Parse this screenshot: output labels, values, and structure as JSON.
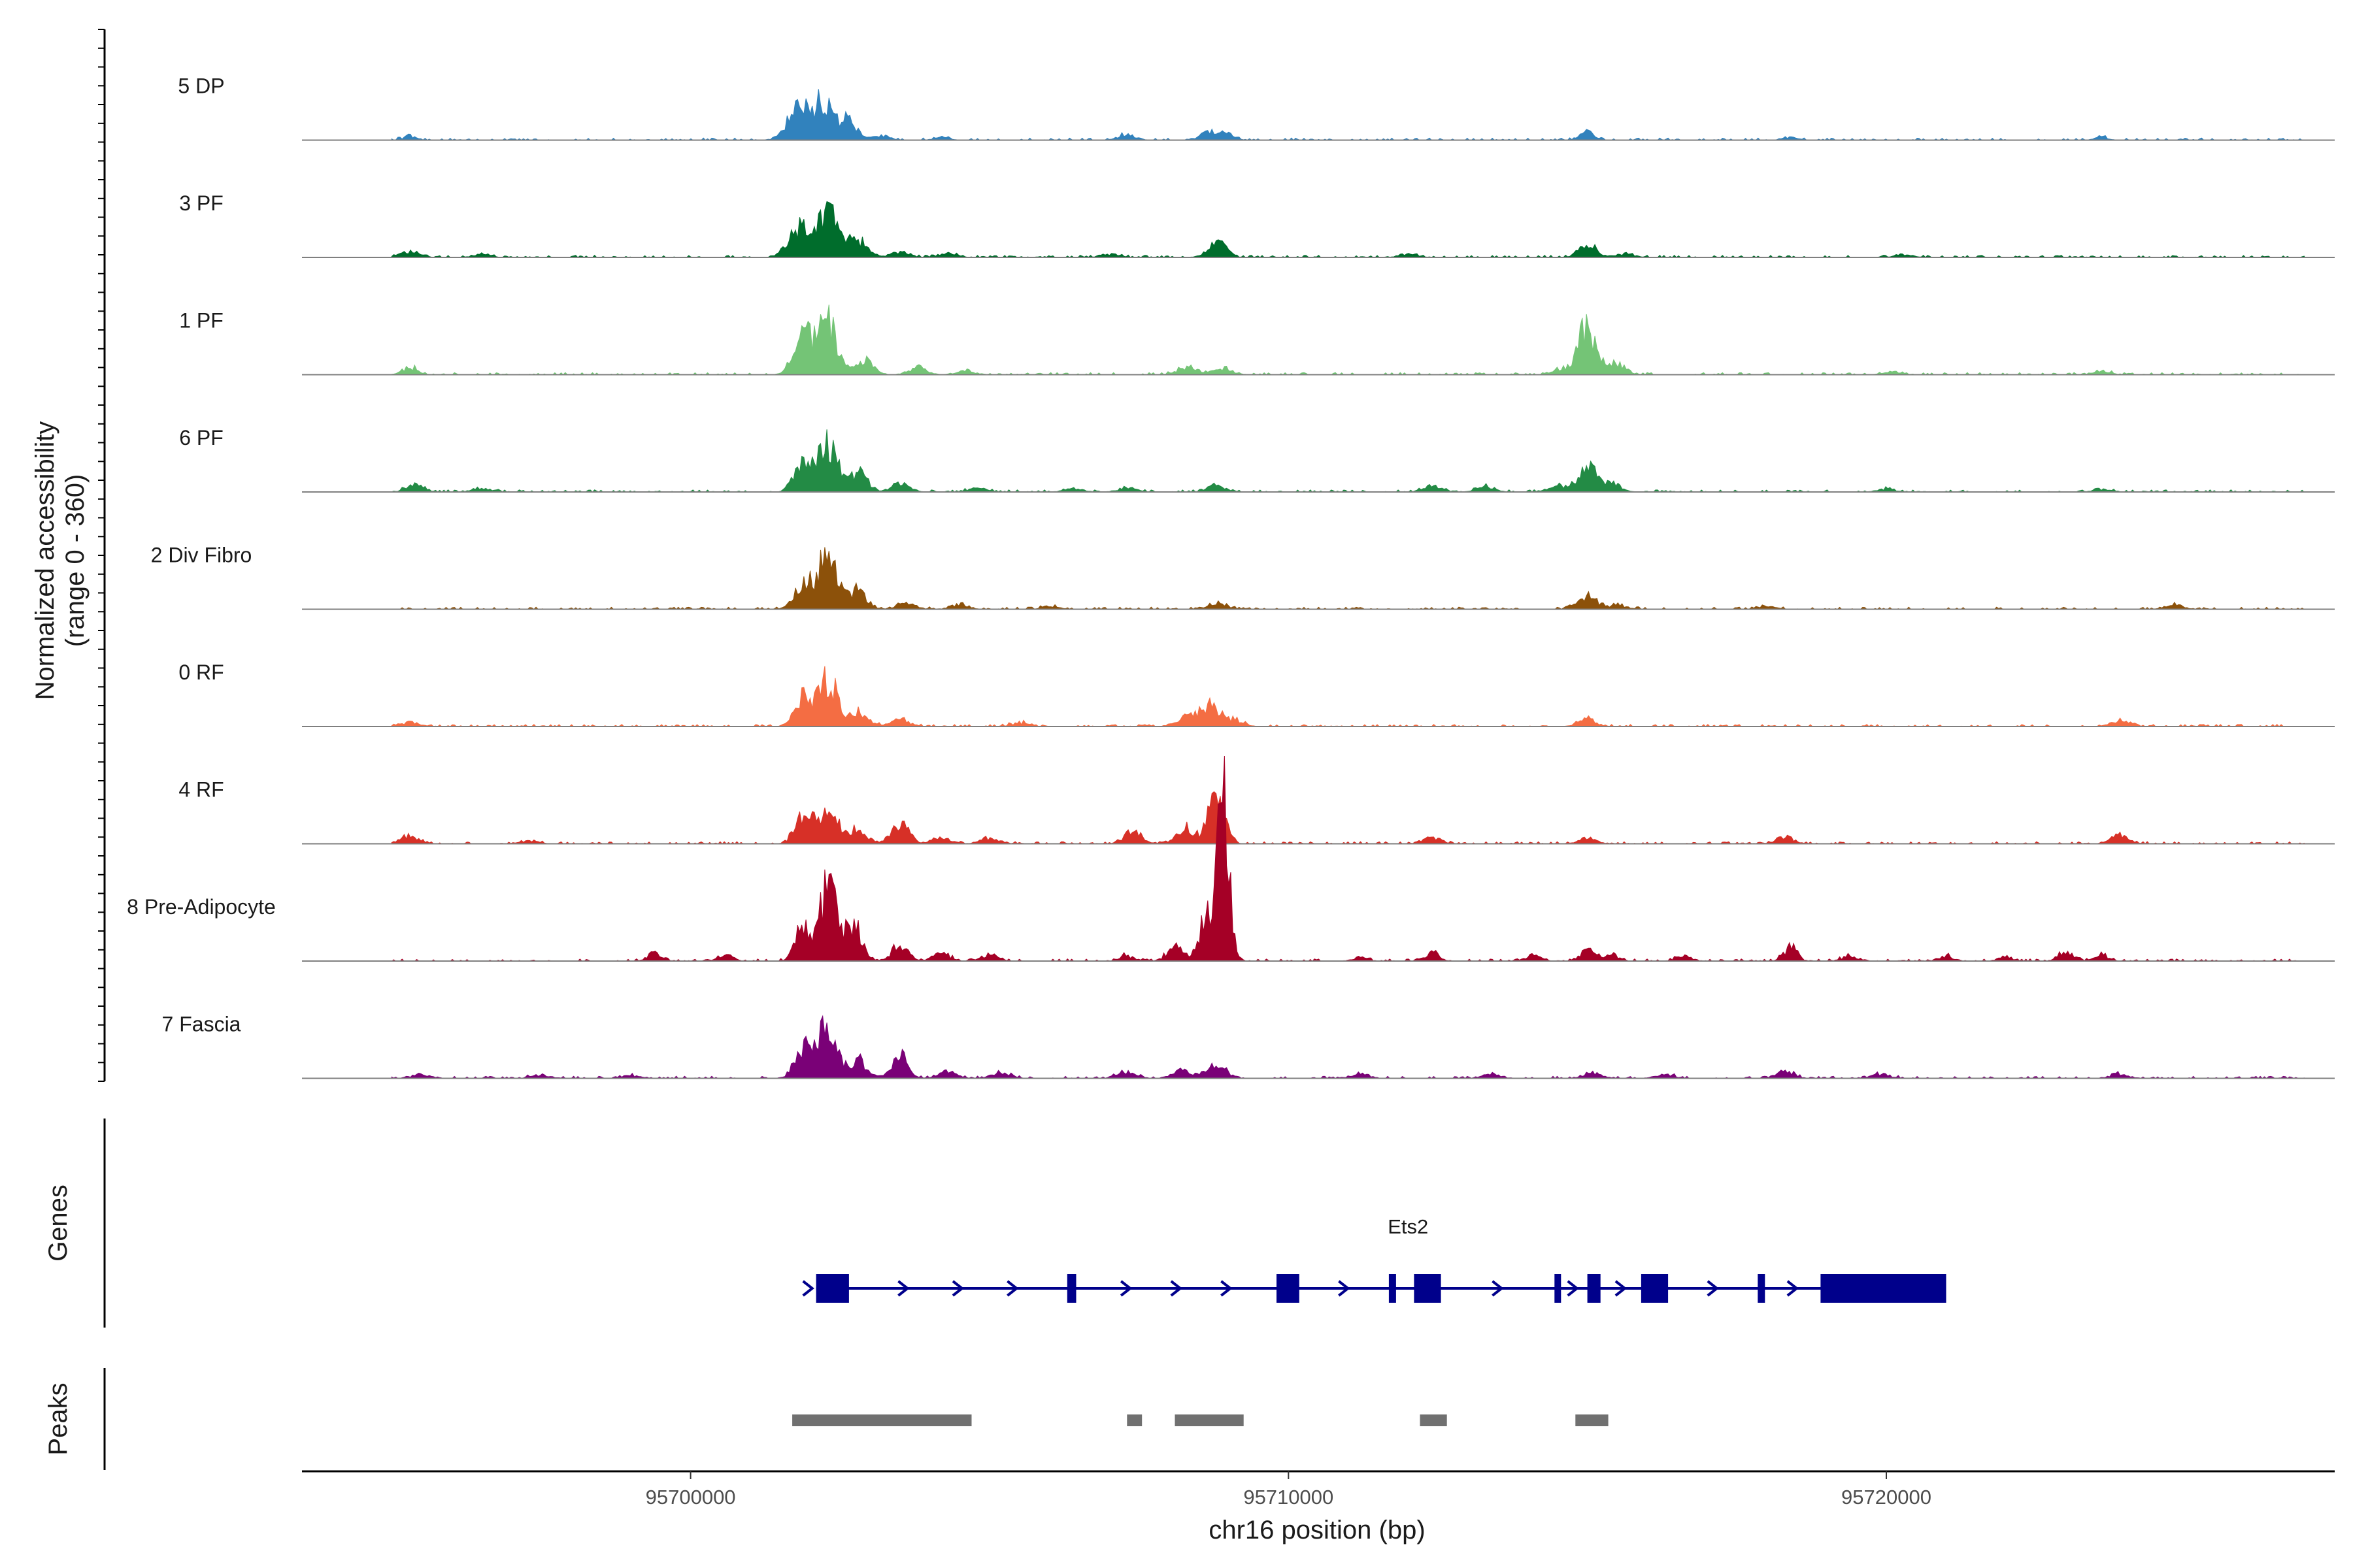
{
  "chart_data": {
    "type": "area",
    "title": "",
    "chromosome": "chr16",
    "xlabel": "chr16 position (bp)",
    "xlim": [
      95693500,
      95727500
    ],
    "x_ticks": [
      95700000,
      95710000,
      95720000
    ],
    "x_tick_labels": [
      "95700000",
      "95710000",
      "95720000"
    ],
    "coverage_ylabel_line1": "Normalized accessibility",
    "coverage_ylabel_line2": "(range 0 - 360)",
    "ylim": [
      0,
      360
    ],
    "genes_track_label": "Genes",
    "peaks_track_label": "Peaks",
    "series": [
      {
        "name": "5 DP",
        "color": "#3182bd",
        "peaks": [
          [
            95695300,
            6,
            100
          ],
          [
            95701800,
            45,
            180
          ],
          [
            95702200,
            52,
            160
          ],
          [
            95702600,
            30,
            150
          ],
          [
            95703200,
            8,
            120
          ],
          [
            95704200,
            5,
            120
          ],
          [
            95707300,
            8,
            150
          ],
          [
            95708700,
            13,
            160
          ],
          [
            95709000,
            8,
            120
          ],
          [
            95715000,
            12,
            110
          ],
          [
            95718400,
            4,
            120
          ],
          [
            95723600,
            5,
            100
          ]
        ]
      },
      {
        "name": "3 PF",
        "color": "#006d2c",
        "peaks": [
          [
            95695300,
            8,
            150
          ],
          [
            95696500,
            4,
            150
          ],
          [
            95701800,
            45,
            170
          ],
          [
            95702300,
            65,
            180
          ],
          [
            95702800,
            25,
            150
          ],
          [
            95703500,
            8,
            150
          ],
          [
            95704300,
            6,
            150
          ],
          [
            95707000,
            5,
            150
          ],
          [
            95708800,
            22,
            150
          ],
          [
            95712000,
            5,
            150
          ],
          [
            95715000,
            22,
            130
          ],
          [
            95715600,
            5,
            150
          ],
          [
            95720300,
            4,
            150
          ]
        ]
      },
      {
        "name": "1 PF",
        "color": "#74c476",
        "peaks": [
          [
            95695300,
            10,
            130
          ],
          [
            95701900,
            55,
            170
          ],
          [
            95702300,
            75,
            150
          ],
          [
            95702900,
            20,
            150
          ],
          [
            95703800,
            10,
            150
          ],
          [
            95704600,
            6,
            150
          ],
          [
            95708300,
            12,
            150
          ],
          [
            95708900,
            10,
            150
          ],
          [
            95714600,
            8,
            150
          ],
          [
            95715000,
            70,
            150
          ],
          [
            95715500,
            15,
            150
          ],
          [
            95720100,
            4,
            150
          ],
          [
            95723600,
            4,
            150
          ]
        ]
      },
      {
        "name": "6 PF",
        "color": "#238b45",
        "peaks": [
          [
            95695400,
            10,
            150
          ],
          [
            95696500,
            6,
            150
          ],
          [
            95701900,
            45,
            150
          ],
          [
            95702300,
            70,
            150
          ],
          [
            95702800,
            30,
            150
          ],
          [
            95703500,
            12,
            150
          ],
          [
            95704800,
            6,
            150
          ],
          [
            95706400,
            5,
            150
          ],
          [
            95707300,
            6,
            150
          ],
          [
            95708800,
            10,
            150
          ],
          [
            95712400,
            8,
            150
          ],
          [
            95713300,
            8,
            150
          ],
          [
            95714500,
            10,
            150
          ],
          [
            95715000,
            38,
            150
          ],
          [
            95715400,
            12,
            150
          ],
          [
            95720000,
            4,
            150
          ],
          [
            95723600,
            4,
            150
          ]
        ]
      },
      {
        "name": "2 Div Fibro",
        "color": "#8c510a",
        "peaks": [
          [
            95701900,
            40,
            150
          ],
          [
            95702300,
            78,
            150
          ],
          [
            95702800,
            28,
            150
          ],
          [
            95703600,
            10,
            150
          ],
          [
            95704500,
            6,
            150
          ],
          [
            95706000,
            4,
            150
          ],
          [
            95708800,
            10,
            150
          ],
          [
            95715000,
            20,
            150
          ],
          [
            95715500,
            6,
            150
          ],
          [
            95718000,
            4,
            150
          ],
          [
            95724800,
            6,
            150
          ]
        ]
      },
      {
        "name": "0 RF",
        "color": "#f46d43",
        "peaks": [
          [
            95695300,
            6,
            150
          ],
          [
            95701900,
            40,
            150
          ],
          [
            95702300,
            70,
            150
          ],
          [
            95702800,
            22,
            150
          ],
          [
            95703500,
            10,
            150
          ],
          [
            95705500,
            5,
            150
          ],
          [
            95708300,
            18,
            150
          ],
          [
            95708700,
            35,
            150
          ],
          [
            95709100,
            10,
            150
          ],
          [
            95715000,
            10,
            150
          ],
          [
            95723900,
            8,
            150
          ]
        ]
      },
      {
        "name": "4 RF",
        "color": "#d73027",
        "peaks": [
          [
            95695300,
            12,
            150
          ],
          [
            95697300,
            4,
            150
          ],
          [
            95701900,
            40,
            150
          ],
          [
            95702300,
            55,
            150
          ],
          [
            95702800,
            20,
            150
          ],
          [
            95703500,
            28,
            150
          ],
          [
            95704200,
            10,
            150
          ],
          [
            95705000,
            8,
            150
          ],
          [
            95707400,
            18,
            150
          ],
          [
            95708300,
            22,
            150
          ],
          [
            95708800,
            80,
            130
          ],
          [
            95712400,
            8,
            150
          ],
          [
            95715000,
            8,
            150
          ],
          [
            95718300,
            10,
            150
          ],
          [
            95723900,
            12,
            150
          ]
        ]
      },
      {
        "name": "8 Pre-Adipocyte",
        "color": "#a50026",
        "peaks": [
          [
            95699400,
            12,
            120
          ],
          [
            95700600,
            8,
            120
          ],
          [
            95701900,
            55,
            130
          ],
          [
            95702300,
            110,
            130
          ],
          [
            95702700,
            60,
            140
          ],
          [
            95703500,
            25,
            130
          ],
          [
            95704200,
            12,
            130
          ],
          [
            95705000,
            10,
            130
          ],
          [
            95707300,
            8,
            120
          ],
          [
            95708100,
            20,
            130
          ],
          [
            95708600,
            55,
            120
          ],
          [
            95708900,
            225,
            110
          ],
          [
            95711200,
            6,
            120
          ],
          [
            95712400,
            12,
            120
          ],
          [
            95714100,
            8,
            120
          ],
          [
            95715000,
            15,
            120
          ],
          [
            95715400,
            10,
            120
          ],
          [
            95716600,
            8,
            120
          ],
          [
            95718400,
            20,
            110
          ],
          [
            95719400,
            8,
            120
          ],
          [
            95721000,
            8,
            120
          ],
          [
            95722000,
            6,
            120
          ],
          [
            95723000,
            15,
            120
          ],
          [
            95723600,
            8,
            120
          ]
        ]
      },
      {
        "name": "7 Fascia",
        "color": "#7a0177",
        "peaks": [
          [
            95695500,
            6,
            150
          ],
          [
            95697500,
            5,
            150
          ],
          [
            95699000,
            4,
            150
          ],
          [
            95701900,
            45,
            150
          ],
          [
            95702300,
            75,
            150
          ],
          [
            95702800,
            25,
            150
          ],
          [
            95703500,
            38,
            130
          ],
          [
            95704300,
            10,
            150
          ],
          [
            95705200,
            8,
            150
          ],
          [
            95707300,
            10,
            150
          ],
          [
            95708200,
            12,
            150
          ],
          [
            95708800,
            22,
            150
          ],
          [
            95711200,
            6,
            150
          ],
          [
            95713400,
            6,
            150
          ],
          [
            95715100,
            8,
            150
          ],
          [
            95716300,
            6,
            150
          ],
          [
            95718300,
            10,
            150
          ],
          [
            95719900,
            6,
            150
          ],
          [
            95723900,
            6,
            150
          ]
        ]
      }
    ],
    "gene": {
      "name": "Ets2",
      "color": "#00008b",
      "strand": "+",
      "start": 95702100,
      "end": 95721000,
      "exons": [
        [
          95702100,
          95702650
        ],
        [
          95706300,
          95706450
        ],
        [
          95709800,
          95710180
        ],
        [
          95711680,
          95711800
        ],
        [
          95712100,
          95712550
        ],
        [
          95714450,
          95714520
        ],
        [
          95715000,
          95715220
        ],
        [
          95715900,
          95716350
        ],
        [
          95717850,
          95717970
        ],
        [
          95718900,
          95721000
        ]
      ]
    },
    "peaks_track": {
      "color": "#707070",
      "regions": [
        [
          95701700,
          95704700
        ],
        [
          95707300,
          95707550
        ],
        [
          95708100,
          95709250
        ],
        [
          95712200,
          95712650
        ],
        [
          95714800,
          95715350
        ]
      ]
    }
  }
}
